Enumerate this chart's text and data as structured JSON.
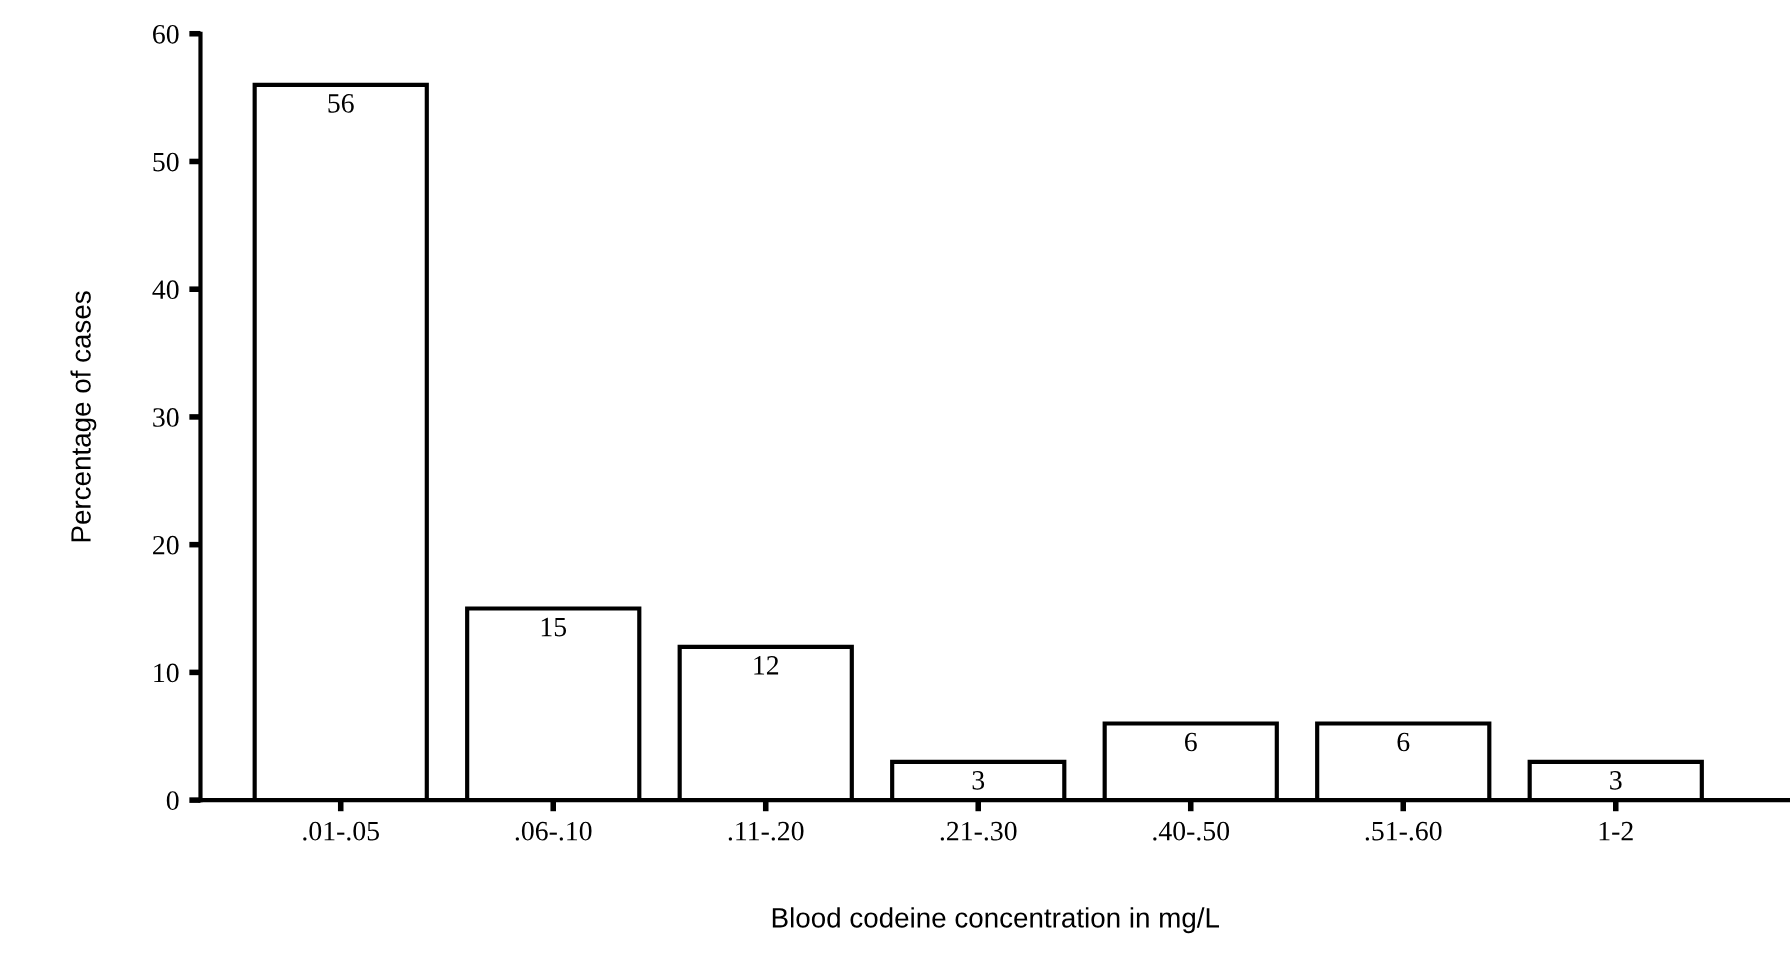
{
  "chart_data": {
    "type": "bar",
    "xlabel": "Blood codeine concentration in mg/L",
    "ylabel": "Percentage of cases",
    "categories": [
      ".01-.05",
      ".06-.10",
      ".11-.20",
      ".21-.30",
      ".40-.50",
      ".51-.60",
      "1-2"
    ],
    "values": [
      56,
      15,
      12,
      3,
      6,
      6,
      3
    ],
    "color": "#ffffff",
    "ylim": [
      0,
      60
    ],
    "yticks": [
      0,
      10,
      20,
      30,
      40,
      50,
      60
    ],
    "data_labels": true,
    "grid": false,
    "legend": false
  }
}
